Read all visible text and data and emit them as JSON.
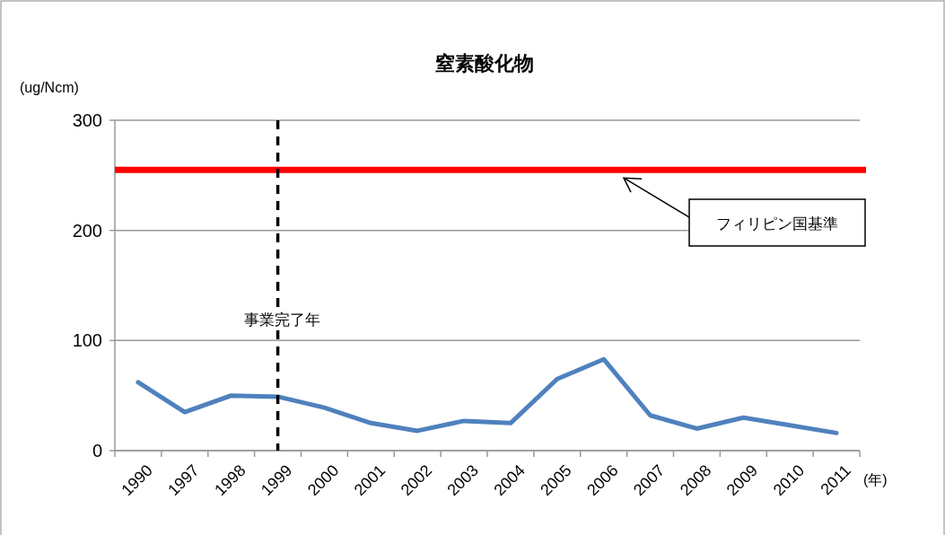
{
  "chart_data": {
    "type": "line",
    "title": "窒素酸化物",
    "ylabel": "(ug/Ncm)",
    "xlabel": "(年)",
    "categories": [
      "1990",
      "1997",
      "1998",
      "1999",
      "2000",
      "2001",
      "2002",
      "2003",
      "2004",
      "2005",
      "2006",
      "2007",
      "2008",
      "2009",
      "2010",
      "2011"
    ],
    "series": [
      {
        "color": "#4f81bd",
        "values": [
          62,
          35,
          50,
          49,
          39,
          25,
          18,
          27,
          25,
          65,
          83,
          32,
          20,
          30,
          23,
          16
        ]
      }
    ],
    "ylim": [
      0,
      300
    ],
    "yticks": [
      0,
      100,
      200,
      300
    ],
    "grid": "y",
    "marker": "none",
    "line_style": "solid",
    "ref_lines": [
      {
        "axis": "y",
        "value": 255,
        "label": "フィリピン国基準",
        "color": "#ff0000",
        "line_style": "solid"
      },
      {
        "axis": "x",
        "value": "1999",
        "label": "事業完了年",
        "color": "#000000",
        "line_style": "dashed"
      }
    ]
  }
}
